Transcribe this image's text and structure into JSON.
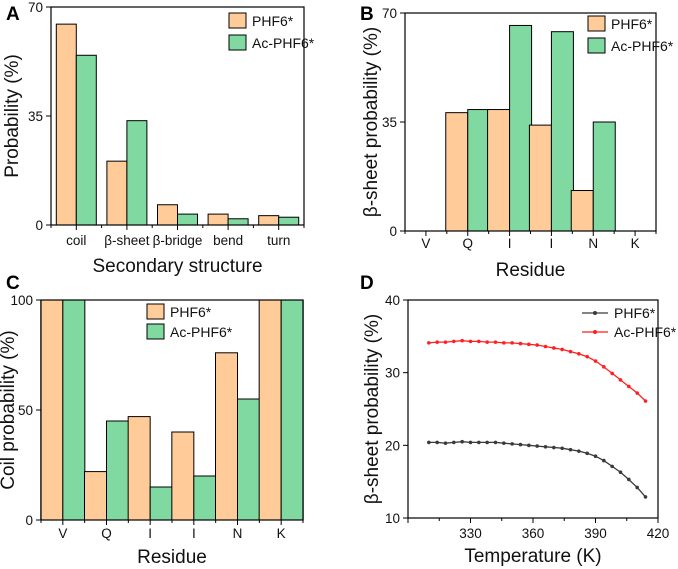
{
  "colors": {
    "phf6": "#FFCC99",
    "ac_phf6": "#80D9A0",
    "phf6_line": "#3a3a3a",
    "ac_phf6_line": "#FF1F1F",
    "axis": "#000000"
  },
  "chart_data": [
    {
      "panel": "A",
      "type": "bar",
      "categories": [
        "coil",
        "β-sheet",
        "β-bridge",
        "bend",
        "turn"
      ],
      "series": [
        {
          "name": "PHF6*",
          "values": [
            64.5,
            20.5,
            6.5,
            3.5,
            3
          ]
        },
        {
          "name": "Ac-PHF6*",
          "values": [
            54.5,
            33.5,
            3.5,
            2,
            2.5
          ]
        }
      ],
      "xlabel": "Secondary structure",
      "ylabel": "Probability (%)",
      "ylim": [
        0,
        70
      ],
      "yticks": [
        0,
        35,
        70
      ],
      "legend": "top-right"
    },
    {
      "panel": "B",
      "type": "bar",
      "categories": [
        "V",
        "Q",
        "I",
        "I",
        "N",
        "K"
      ],
      "series": [
        {
          "name": "PHF6*",
          "values": [
            0,
            38,
            39,
            34,
            13,
            0
          ]
        },
        {
          "name": "Ac-PHF6*",
          "values": [
            0,
            39,
            66,
            64,
            35,
            0
          ]
        }
      ],
      "xlabel": "Residue",
      "ylabel": "β-sheet probability (%)",
      "ylim": [
        0,
        70
      ],
      "yticks": [
        0,
        35,
        70
      ],
      "legend": "top-right"
    },
    {
      "panel": "C",
      "type": "bar",
      "categories": [
        "V",
        "Q",
        "I",
        "I",
        "N",
        "K"
      ],
      "series": [
        {
          "name": "PHF6*",
          "values": [
            100,
            22,
            47,
            40,
            76,
            100
          ]
        },
        {
          "name": "Ac-PHF6*",
          "values": [
            100,
            45,
            15,
            20,
            55,
            100
          ]
        }
      ],
      "xlabel": "Residue",
      "ylabel": "Coil probability (%)",
      "ylim": [
        0,
        100
      ],
      "yticks": [
        0,
        50,
        100
      ],
      "legend": "top-left"
    },
    {
      "panel": "D",
      "type": "line",
      "x": [
        310,
        314,
        318,
        322,
        326,
        330,
        334,
        338,
        342,
        346,
        350,
        354,
        358,
        362,
        366,
        370,
        374,
        378,
        382,
        386,
        390,
        394,
        398,
        402,
        406,
        410,
        414
      ],
      "series": [
        {
          "name": "PHF6*",
          "values": [
            20.4,
            20.4,
            20.3,
            20.4,
            20.5,
            20.4,
            20.4,
            20.4,
            20.4,
            20.3,
            20.2,
            20.1,
            20.0,
            19.9,
            19.8,
            19.7,
            19.6,
            19.4,
            19.2,
            18.9,
            18.5,
            17.9,
            17.1,
            16.3,
            15.3,
            14.2,
            12.9
          ]
        },
        {
          "name": "Ac-PHF6*",
          "values": [
            34.1,
            34.2,
            34.2,
            34.3,
            34.4,
            34.3,
            34.3,
            34.2,
            34.2,
            34.1,
            34.1,
            34.0,
            33.9,
            33.8,
            33.6,
            33.4,
            33.2,
            32.9,
            32.6,
            32.2,
            31.6,
            30.8,
            29.9,
            29.0,
            28.1,
            27.2,
            26.1
          ]
        }
      ],
      "xlabel": "Temperature (K)",
      "ylabel": "β-sheet probability (%)",
      "xlim": [
        300,
        420
      ],
      "xticks": [
        300,
        330,
        360,
        390,
        420
      ],
      "xtick_labels": [
        "",
        "330",
        "360",
        "390",
        "420"
      ],
      "ylim": [
        10,
        40
      ],
      "yticks": [
        10,
        20,
        30,
        40
      ],
      "legend": "top-right"
    }
  ]
}
